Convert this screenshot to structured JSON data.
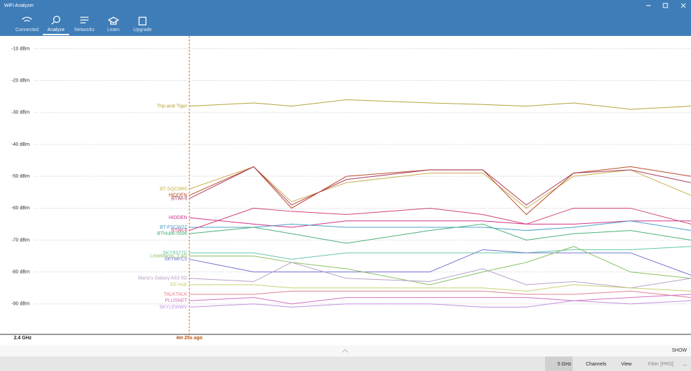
{
  "app": {
    "title": "WiFi Analyzer",
    "nav": [
      "Connected",
      "Analyze",
      "Networks",
      "Learn",
      "Upgrade"
    ],
    "toolbar": [
      "5 GHz",
      "Channels",
      "View",
      "Filter [PRO]",
      "..."
    ],
    "show": "SHOW"
  },
  "chart_data": {
    "type": "line",
    "band": "2.4 GHz",
    "marker": {
      "x": -265,
      "label": "4m 25s ago"
    },
    "x": [
      -265,
      -231,
      -211,
      -182,
      -138,
      -110,
      -87,
      -62,
      -32,
      0
    ],
    "xlim": [
      -365,
      0
    ],
    "ylim": [
      -100,
      -6
    ],
    "yticks": [
      {
        "value": -10,
        "label": "-10 dBm"
      },
      {
        "value": -20,
        "label": "-20 dBm"
      },
      {
        "value": -30,
        "label": "-30 dBm"
      },
      {
        "value": -40,
        "label": "-40 dBm"
      },
      {
        "value": -50,
        "label": "-50 dBm"
      },
      {
        "value": -60,
        "label": "-60 dBm"
      },
      {
        "value": -70,
        "label": "-70 dBm"
      },
      {
        "value": -80,
        "label": "-80 dBm"
      },
      {
        "value": -90,
        "label": "-90 dBm"
      }
    ],
    "grid": true,
    "series": [
      {
        "name": "Trip-and-Tiger",
        "color": "#b5a23a",
        "values": [
          -28,
          -27,
          -28,
          -26,
          -27,
          -27.5,
          -28,
          -27,
          -29,
          -28
        ]
      },
      {
        "name": "BT-SQCM65",
        "color": "#c9b050",
        "values": [
          -54,
          -47,
          -58,
          -52,
          -49,
          -49,
          -60,
          -50,
          -48,
          -56
        ]
      },
      {
        "name": "HIDDEN",
        "color": "#b84a2a",
        "values": [
          -56,
          -47,
          -60,
          -50,
          -48,
          -48,
          -62,
          -49,
          -47,
          -50
        ]
      },
      {
        "name": "BTWi-fi",
        "color": "#a83a5a",
        "values": [
          -57,
          -47,
          -59,
          -51,
          -48,
          -48,
          -59,
          -49,
          -48,
          -52
        ]
      },
      {
        "name": "HIDDEN",
        "color": "#d0308a",
        "values": [
          -63,
          -65,
          -66,
          -64,
          -64,
          -64,
          -65,
          -65,
          -64,
          -64
        ]
      },
      {
        "name": "BT-FSCW2Z",
        "color": "#4aa0c8",
        "values": [
          -66,
          -66,
          -65,
          -66,
          -66,
          -66,
          -67,
          -66,
          -64,
          -67
        ]
      },
      {
        "name": "BTWi-fi",
        "color": "#d04070",
        "values": [
          -67,
          -60,
          -61,
          -62,
          -60,
          -62,
          -65,
          -60,
          -60,
          -65
        ]
      },
      {
        "name": "BTHub6-5696",
        "color": "#48b078",
        "values": [
          -68,
          -66,
          -68,
          -71,
          -67,
          -65,
          -70,
          -68,
          -67,
          -70
        ]
      },
      {
        "name": "SKY9S77C",
        "color": "#60c8a8",
        "values": [
          -74,
          -74,
          -76,
          -74,
          -74,
          -74,
          -74,
          -73,
          -73,
          -72
        ]
      },
      {
        "name": "SKYMFC5",
        "color": "#7070d0",
        "values": [
          -76,
          -80,
          -80,
          -80,
          -80,
          -73,
          -74,
          -74,
          -74,
          -81
        ]
      },
      {
        "name": "LoveMargs_2.4G",
        "color": "#88c060",
        "values": [
          -75,
          -75,
          -77,
          -79,
          -84,
          -80,
          -77,
          -72,
          -80,
          -82
        ]
      },
      {
        "name": "Maria's Galaxy A53 5G",
        "color": "#b8a0c8",
        "values": [
          -82,
          -83,
          -77,
          -82,
          -83,
          -79,
          -84,
          -83,
          -85,
          -82
        ]
      },
      {
        "name": "EE-Hub",
        "color": "#c8d070",
        "values": [
          -84,
          -84,
          -85,
          -85,
          -85,
          -85,
          -86,
          -84,
          -85,
          -86
        ]
      },
      {
        "name": "TALKTALK",
        "color": "#e08090",
        "values": [
          -87,
          -87,
          -86,
          -86,
          -86,
          -86,
          -87,
          -87,
          -86,
          -88
        ]
      },
      {
        "name": "PLUSNET",
        "color": "#d070c0",
        "values": [
          -89,
          -88,
          -90,
          -88,
          -88,
          -88,
          -88,
          -89,
          -88,
          -87
        ]
      },
      {
        "name": "SKYLEWWV",
        "color": "#c090e0",
        "values": [
          -91,
          -90,
          -91,
          -90,
          -90,
          -91,
          -91,
          -89,
          -90,
          -89
        ]
      }
    ]
  }
}
